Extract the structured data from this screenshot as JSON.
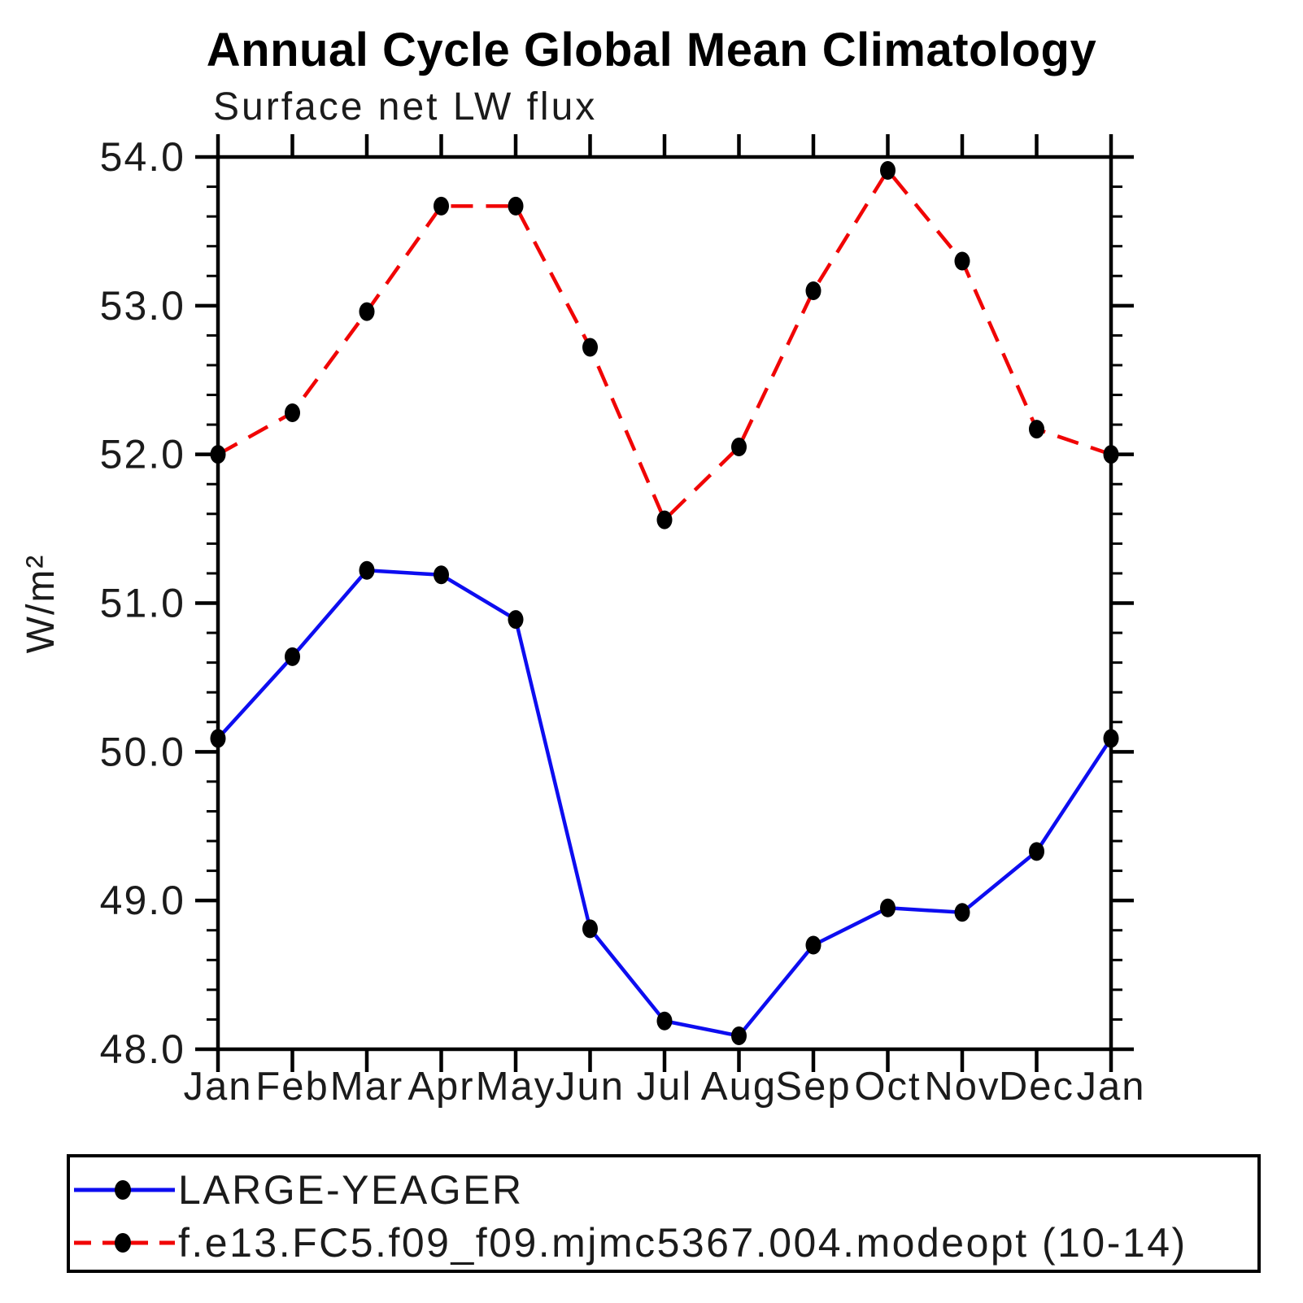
{
  "header": {
    "title": "Annual Cycle Global Mean Climatology",
    "subtitle": "Surface net LW flux"
  },
  "chart_data": {
    "type": "line",
    "title": "Annual Cycle Global Mean Climatology",
    "subtitle": "Surface net LW flux",
    "xlabel": "",
    "ylabel": "W/m²",
    "categories": [
      "Jan",
      "Feb",
      "Mar",
      "Apr",
      "May",
      "Jun",
      "Jul",
      "Aug",
      "Sep",
      "Oct",
      "Nov",
      "Dec",
      "Jan"
    ],
    "series": [
      {
        "name": "LARGE-YEAGER",
        "color": "#0d0df0",
        "line_style": "solid",
        "values": [
          50.09,
          50.64,
          51.22,
          51.19,
          50.89,
          48.81,
          48.19,
          48.09,
          48.7,
          48.95,
          48.92,
          49.33,
          50.09
        ]
      },
      {
        "name": "f.e13.FC5.f09_f09.mjmc5367.004.modeopt (10-14)",
        "color": "#f00505",
        "line_style": "dashed",
        "values": [
          52.0,
          52.28,
          52.96,
          53.67,
          53.67,
          52.72,
          51.56,
          52.05,
          53.1,
          53.91,
          53.3,
          52.17,
          52.0
        ]
      }
    ],
    "ylim": [
      48.0,
      54.0
    ],
    "ytick_major_step": 1.0,
    "ytick_minor_step": 0.2,
    "ytick_labels": [
      "48.0",
      "49.0",
      "50.0",
      "51.0",
      "52.0",
      "53.0",
      "54.0"
    ],
    "marker": "filled-circle",
    "marker_color": "#000000",
    "axis_color": "#000000",
    "grid": false,
    "legend_position": "bottom"
  },
  "legend": {
    "items": [
      {
        "label": "LARGE-YEAGER",
        "color": "#0d0df0",
        "line_style": "solid"
      },
      {
        "label": "f.e13.FC5.f09_f09.mjmc5367.004.modeopt (10-14)",
        "color": "#f00505",
        "line_style": "dashed"
      }
    ]
  }
}
